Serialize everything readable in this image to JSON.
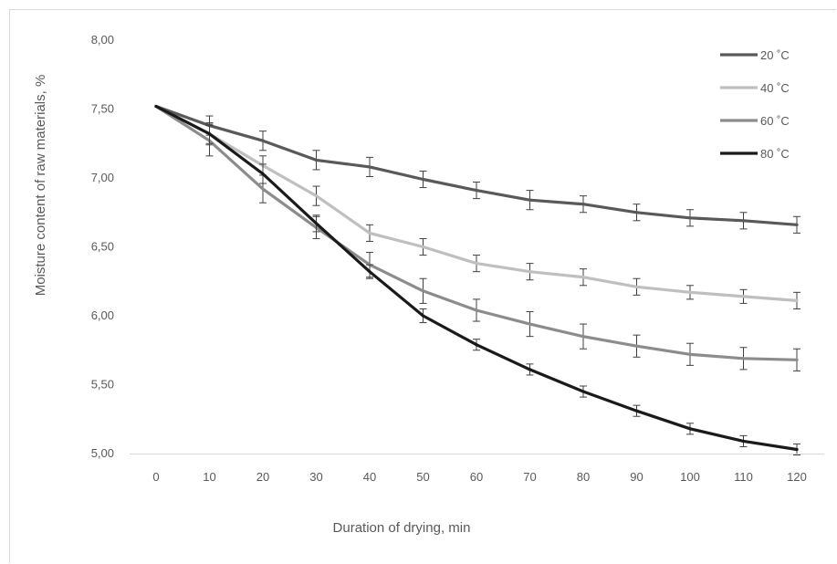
{
  "chart_data": {
    "type": "line",
    "xlabel": "Duration of drying, min",
    "ylabel": "Moisture content  of raw materials, %",
    "x": [
      0,
      10,
      20,
      30,
      40,
      50,
      60,
      70,
      80,
      90,
      100,
      110,
      120
    ],
    "x_tick_labels": [
      "0",
      "10",
      "20",
      "30",
      "40",
      "50",
      "60",
      "70",
      "80",
      "90",
      "100",
      "110",
      "120"
    ],
    "y_tick_labels": [
      "8,00",
      "7,50",
      "7,00",
      "6,50",
      "6,00",
      "5,50",
      "5,00"
    ],
    "y_ticks": [
      8.0,
      7.5,
      7.0,
      6.5,
      6.0,
      5.5,
      5.0
    ],
    "ylim": [
      5.0,
      8.0
    ],
    "grid": false,
    "error_bars": true,
    "legend_position": "top-right",
    "series": [
      {
        "name": "20 ˚C",
        "color": "#595959",
        "values": [
          7.52,
          7.38,
          7.27,
          7.13,
          7.08,
          6.99,
          6.91,
          6.84,
          6.81,
          6.75,
          6.71,
          6.69,
          6.66
        ],
        "errors": [
          0.0,
          0.07,
          0.07,
          0.07,
          0.07,
          0.06,
          0.06,
          0.07,
          0.06,
          0.06,
          0.06,
          0.06,
          0.06
        ]
      },
      {
        "name": "40 ˚C",
        "color": "#bfbfbf",
        "values": [
          7.52,
          7.32,
          7.09,
          6.87,
          6.6,
          6.5,
          6.38,
          6.32,
          6.28,
          6.21,
          6.17,
          6.14,
          6.11
        ],
        "errors": [
          0.0,
          0.08,
          0.07,
          0.07,
          0.06,
          0.06,
          0.06,
          0.06,
          0.06,
          0.06,
          0.05,
          0.05,
          0.06
        ]
      },
      {
        "name": "60 ˚C",
        "color": "#8c8c8c",
        "values": [
          7.52,
          7.27,
          6.92,
          6.64,
          6.37,
          6.18,
          6.04,
          5.94,
          5.85,
          5.78,
          5.72,
          5.69,
          5.68
        ],
        "errors": [
          0.0,
          0.11,
          0.1,
          0.08,
          0.09,
          0.09,
          0.08,
          0.09,
          0.09,
          0.08,
          0.08,
          0.08,
          0.08
        ]
      },
      {
        "name": "80 ˚C",
        "color": "#1a1a1a",
        "values": [
          7.52,
          7.32,
          7.03,
          6.67,
          6.32,
          6.0,
          5.79,
          5.61,
          5.45,
          5.31,
          5.18,
          5.09,
          5.03
        ],
        "errors": [
          0.0,
          0.07,
          0.07,
          0.06,
          0.05,
          0.05,
          0.04,
          0.04,
          0.04,
          0.04,
          0.04,
          0.04,
          0.04
        ]
      }
    ]
  }
}
